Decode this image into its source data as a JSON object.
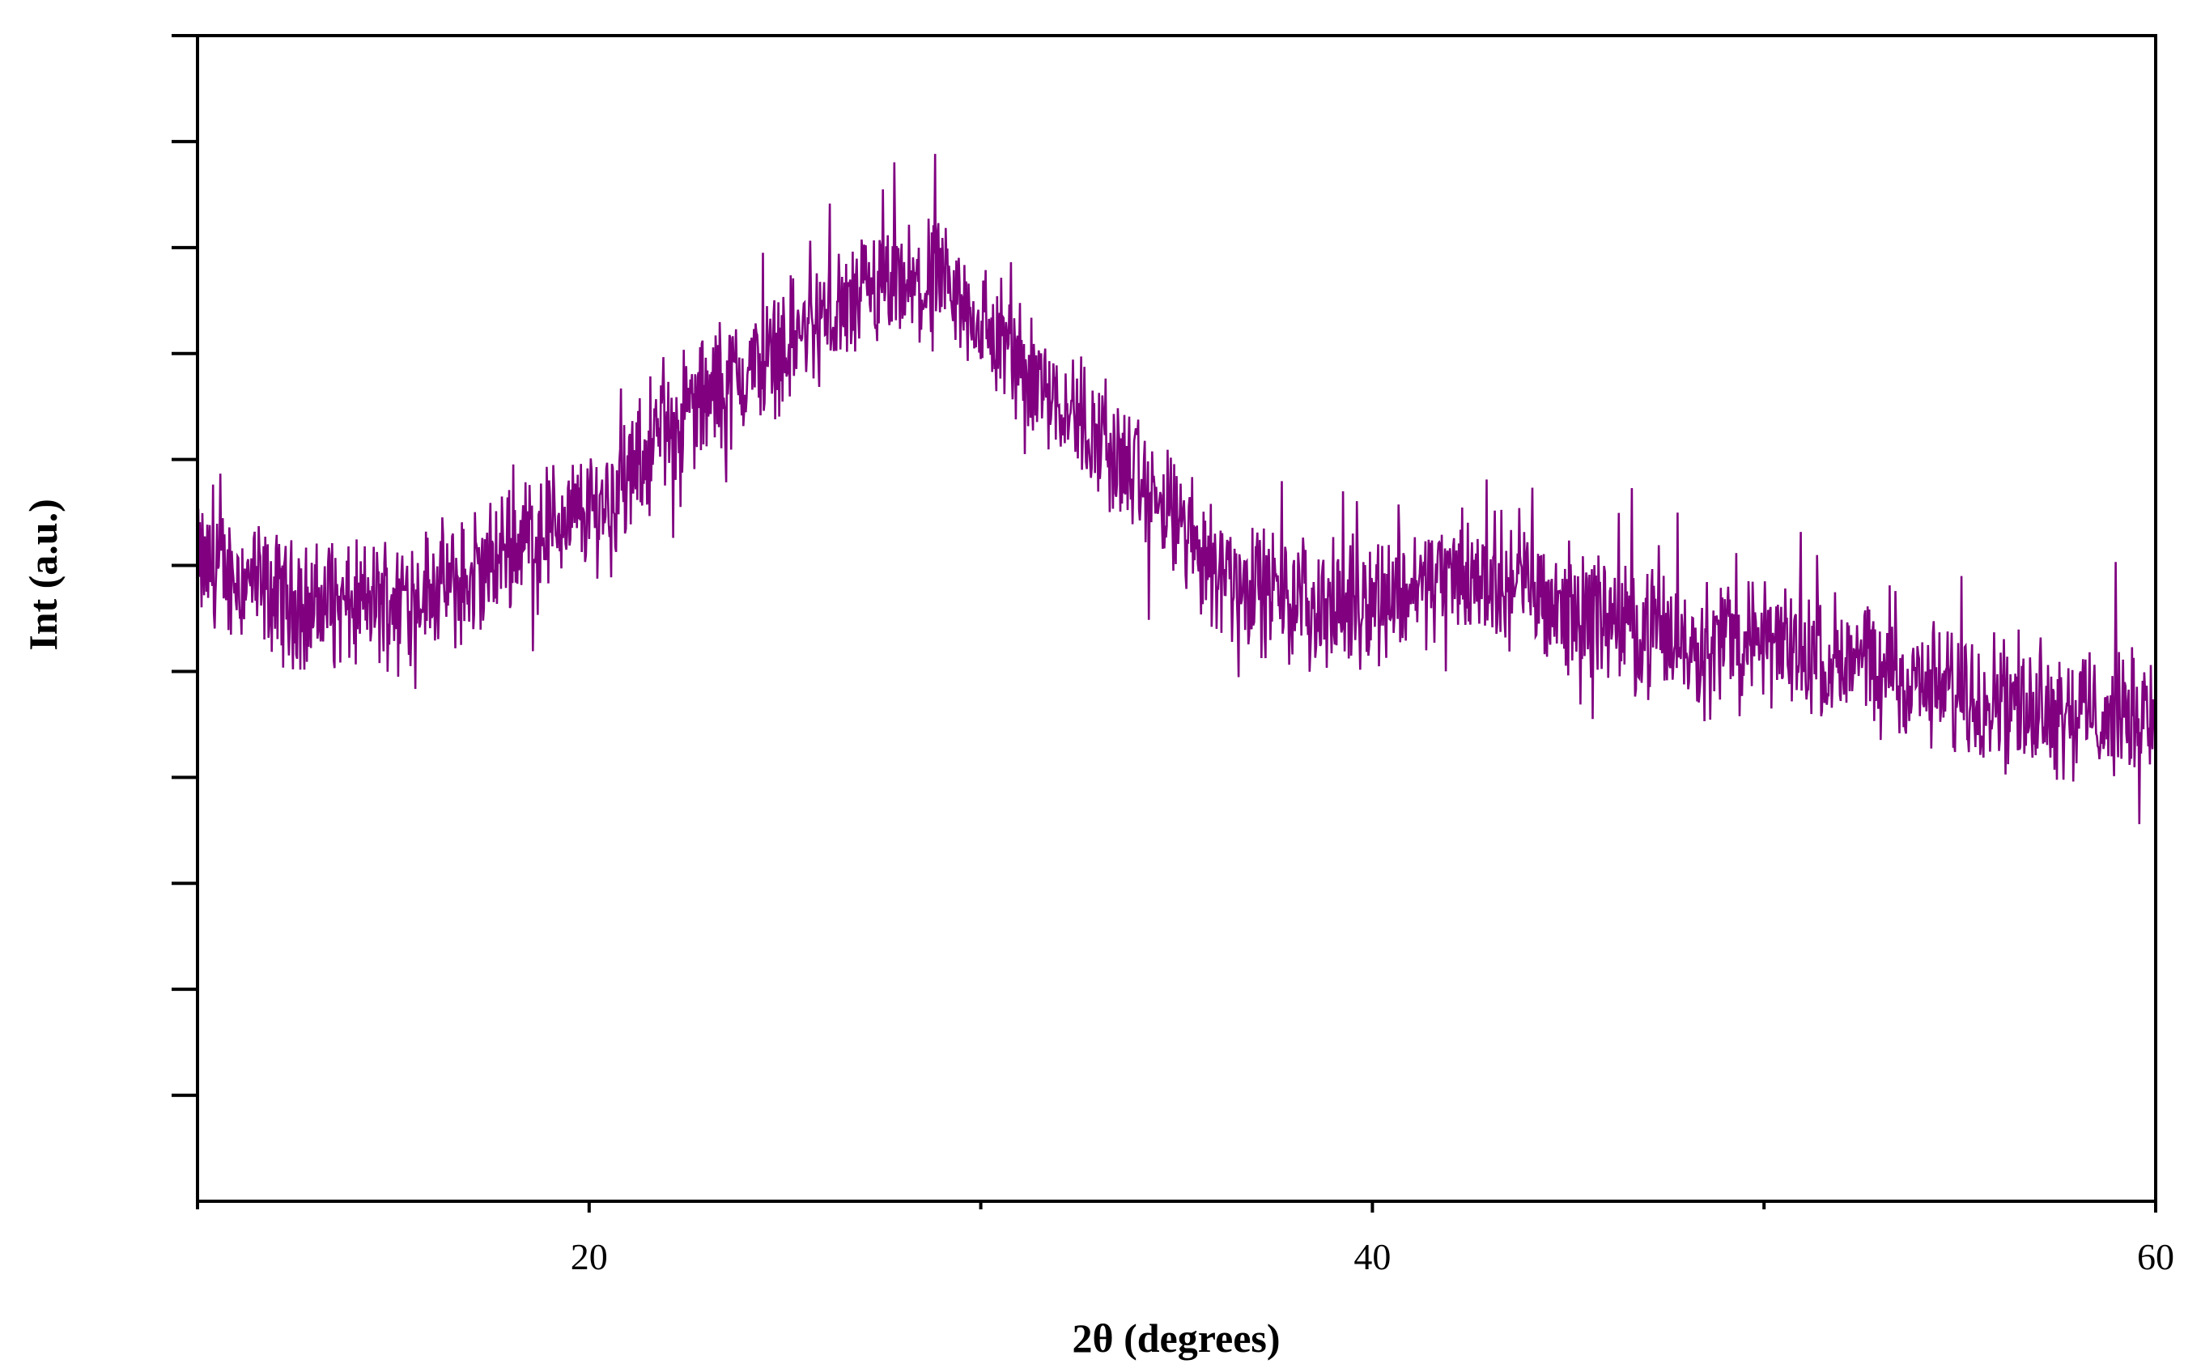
{
  "chart_data": {
    "type": "line",
    "title": "",
    "xlabel": "2θ (degrees)",
    "ylabel": "Int (a.u.)",
    "xlim": [
      10,
      60
    ],
    "ylim": [
      0,
      11
    ],
    "x_ticks_major": [
      20,
      40,
      60
    ],
    "x_ticks_major_labels": [
      "20",
      "40",
      "60"
    ],
    "x_ticks_minor": [
      10,
      30,
      50
    ],
    "y_ticks": [
      1,
      2,
      3,
      4,
      5,
      6,
      7,
      8,
      9,
      10,
      11
    ],
    "y_tick_labels_shown": false,
    "grid": false,
    "legend": "none",
    "line_color": "#800080",
    "series": [
      {
        "x": [
          10,
          11,
          12,
          13,
          14,
          15,
          16,
          17,
          18,
          19,
          20,
          21,
          22,
          23,
          24,
          25,
          26,
          27,
          28,
          29,
          30,
          31,
          32,
          33,
          34,
          35,
          36,
          37,
          38,
          39,
          40,
          41,
          42,
          43,
          44,
          45,
          46,
          47,
          48,
          49,
          50,
          51,
          52,
          53,
          54,
          55,
          56,
          57,
          58,
          59,
          60
        ],
        "y": [
          6.0,
          5.9,
          5.7,
          5.6,
          5.6,
          5.7,
          5.8,
          5.8,
          6.2,
          6.4,
          6.5,
          6.8,
          7.3,
          7.6,
          7.8,
          8.1,
          8.3,
          8.5,
          8.6,
          8.6,
          8.3,
          7.9,
          7.6,
          7.2,
          6.8,
          6.4,
          6.0,
          5.8,
          5.7,
          5.6,
          5.7,
          5.8,
          5.9,
          5.9,
          5.8,
          5.6,
          5.5,
          5.4,
          5.3,
          5.3,
          5.3,
          5.2,
          5.1,
          5.0,
          4.9,
          4.8,
          4.8,
          4.7,
          4.6,
          4.6,
          4.6
        ]
      }
    ]
  }
}
